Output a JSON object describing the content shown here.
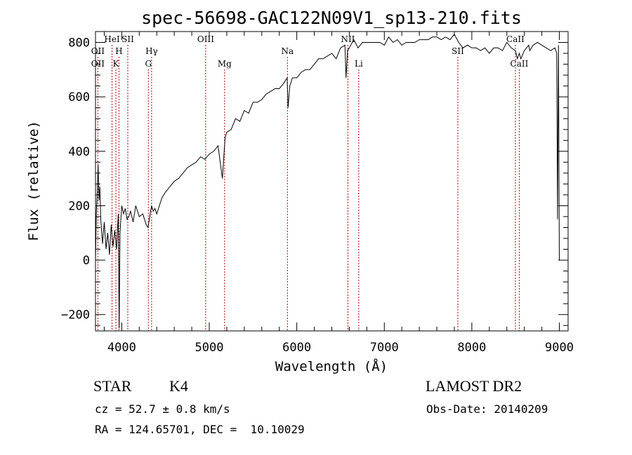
{
  "chart_data": {
    "type": "line",
    "title": "spec-56698-GAC122N09V1_sp13-210.fits",
    "xlabel": "Wavelength (Å)",
    "ylabel": "Flux (relative)",
    "xlim": [
      3700,
      9100
    ],
    "ylim": [
      -260,
      840
    ],
    "x_ticks": [
      4000,
      5000,
      6000,
      7000,
      8000,
      9000
    ],
    "y_ticks": [
      -200,
      0,
      200,
      400,
      600,
      800
    ],
    "x_tick_labels": [
      "4000",
      "5000",
      "6000",
      "7000",
      "8000",
      "9000"
    ],
    "y_tick_labels": [
      "−200",
      "0",
      "200",
      "400",
      "600",
      "800"
    ],
    "grid": false,
    "series": [
      {
        "color": "#000000",
        "x": [
          3700,
          3710,
          3720,
          3730,
          3740,
          3750,
          3760,
          3780,
          3800,
          3820,
          3840,
          3860,
          3880,
          3900,
          3920,
          3940,
          3960,
          3970,
          3980,
          3990,
          4000,
          4020,
          4040,
          4060,
          4080,
          4100,
          4130,
          4160,
          4200,
          4240,
          4280,
          4300,
          4320,
          4340,
          4360,
          4380,
          4400,
          4420,
          4440,
          4460,
          4500,
          4550,
          4600,
          4650,
          4700,
          4750,
          4800,
          4850,
          4900,
          4950,
          5000,
          5050,
          5100,
          5150,
          5180,
          5200,
          5250,
          5300,
          5350,
          5400,
          5450,
          5500,
          5550,
          5600,
          5650,
          5700,
          5750,
          5800,
          5850,
          5890,
          5900,
          5920,
          5950,
          6000,
          6050,
          6100,
          6150,
          6200,
          6250,
          6300,
          6350,
          6400,
          6450,
          6500,
          6550,
          6563,
          6580,
          6600,
          6650,
          6700,
          6750,
          6800,
          6850,
          6900,
          6950,
          7000,
          7050,
          7100,
          7150,
          7200,
          7250,
          7300,
          7350,
          7400,
          7450,
          7500,
          7550,
          7600,
          7650,
          7700,
          7750,
          7800,
          7850,
          7900,
          7950,
          8000,
          8050,
          8100,
          8150,
          8200,
          8250,
          8300,
          8350,
          8400,
          8450,
          8498,
          8520,
          8542,
          8560,
          8600,
          8650,
          8662,
          8700,
          8750,
          8800,
          8850,
          8900,
          8950,
          8970,
          8980,
          8990,
          9000
        ],
        "y": [
          0,
          180,
          240,
          350,
          220,
          270,
          150,
          60,
          140,
          40,
          100,
          20,
          130,
          50,
          110,
          40,
          170,
          -250,
          100,
          150,
          200,
          170,
          190,
          150,
          160,
          180,
          140,
          200,
          160,
          170,
          130,
          120,
          160,
          200,
          180,
          190,
          170,
          190,
          210,
          230,
          250,
          270,
          290,
          300,
          320,
          340,
          350,
          360,
          380,
          370,
          390,
          400,
          420,
          300,
          450,
          470,
          480,
          520,
          510,
          550,
          540,
          580,
          580,
          590,
          610,
          620,
          630,
          630,
          650,
          670,
          560,
          640,
          670,
          670,
          690,
          700,
          700,
          720,
          740,
          740,
          750,
          760,
          740,
          780,
          790,
          670,
          770,
          780,
          810,
          780,
          800,
          800,
          800,
          800,
          800,
          790,
          820,
          800,
          810,
          790,
          800,
          800,
          800,
          810,
          810,
          810,
          820,
          820,
          810,
          820,
          810,
          830,
          800,
          780,
          790,
          780,
          780,
          770,
          780,
          760,
          780,
          780,
          770,
          800,
          780,
          770,
          740,
          760,
          740,
          770,
          790,
          770,
          790,
          800,
          790,
          780,
          770,
          780,
          760,
          150,
          790,
          0
        ]
      }
    ],
    "line_markers": [
      {
        "name": "OII",
        "x": 3727,
        "row": 1
      },
      {
        "name": "OII",
        "x": 3727,
        "row": 2
      },
      {
        "name": "HeI",
        "x": 3889,
        "row": 0
      },
      {
        "name": "H",
        "x": 3968,
        "row": 1
      },
      {
        "name": "K",
        "x": 3933,
        "row": 2
      },
      {
        "name": "SII",
        "x": 4069,
        "row": 0
      },
      {
        "name": "Hγ",
        "x": 4341,
        "row": 1
      },
      {
        "name": "G",
        "x": 4304,
        "row": 2
      },
      {
        "name": "OIII",
        "x": 4959,
        "row": 0
      },
      {
        "name": "Mg",
        "x": 5175,
        "row": 2
      },
      {
        "name": "Na",
        "x": 5893,
        "row": 1
      },
      {
        "name": "NII",
        "x": 6584,
        "row": 0
      },
      {
        "name": "Li",
        "x": 6708,
        "row": 2
      },
      {
        "name": "SII",
        "x": 7840,
        "row": 1
      },
      {
        "name": "CaII",
        "x": 8498,
        "row": 0
      },
      {
        "name": "CaII",
        "x": 8542,
        "row": 2
      }
    ]
  },
  "info": {
    "object_class": "STAR",
    "subclass": "K4",
    "redshift": "cz = 52.7 ± 0.8 km/s",
    "coords": "RA = 124.65701, DEC =  10.10029",
    "survey": "LAMOST DR2",
    "obs_date": "Obs-Date: 20140209"
  }
}
